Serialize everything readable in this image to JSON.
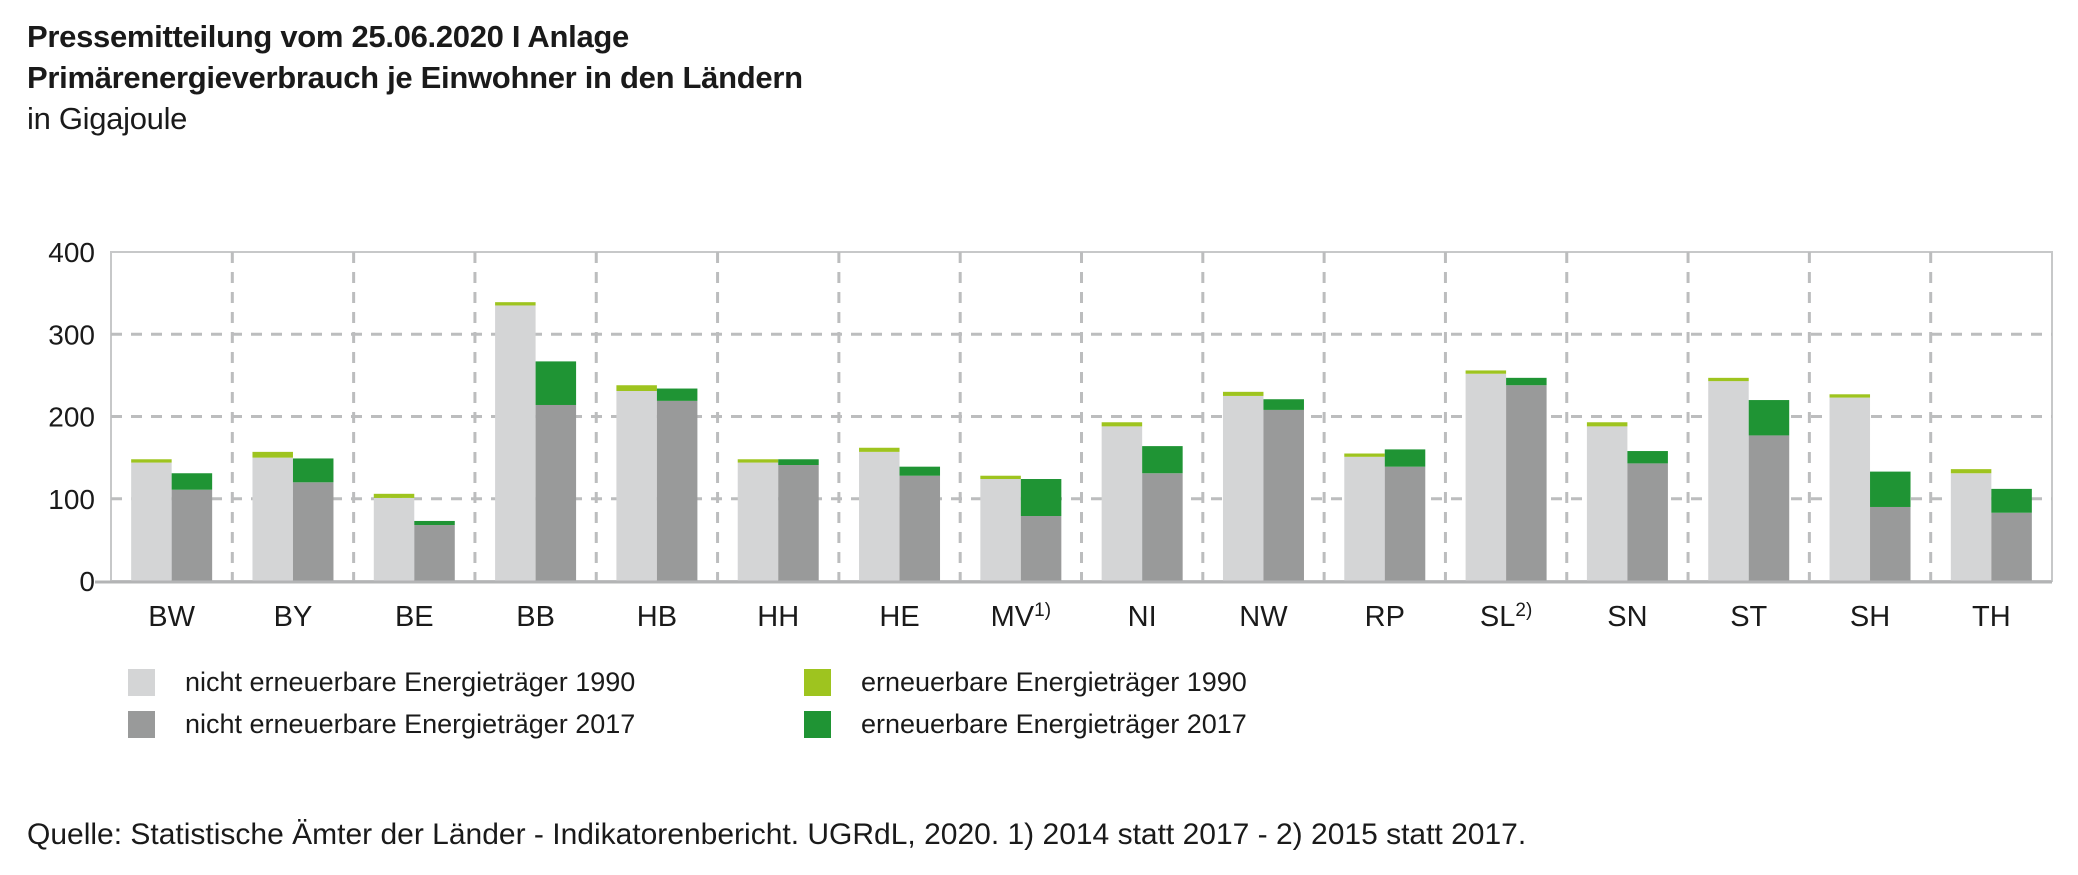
{
  "header": {
    "line1": "Pressemitteilung vom 25.06.2020 I Anlage",
    "line2": "Primärenergieverbrauch je Einwohner in den Ländern",
    "line3": "in Gigajoule"
  },
  "legend": {
    "items": [
      {
        "label": "nicht erneuerbare Energieträger 1990",
        "color": "#d4d5d6"
      },
      {
        "label": "nicht erneuerbare Energieträger 2017",
        "color": "#999a9a"
      },
      {
        "label": "erneuerbare Energieträger 1990",
        "color": "#9ec41f"
      },
      {
        "label": "erneuerbare Energieträger 2017",
        "color": "#1f9434"
      }
    ]
  },
  "footer": {
    "source": "Quelle: Statistische Ämter der Länder - Indikatorenbericht. UGRdL, 2020. 1) 2014 statt 2017 - 2) 2015 statt 2017."
  },
  "chart_data": {
    "type": "bar",
    "subtype": "grouped-stacked",
    "title": "Primärenergieverbrauch je Einwohner in den Ländern",
    "unit": "Gigajoule",
    "ylim": [
      0,
      400
    ],
    "yticks": [
      0,
      100,
      200,
      300,
      400
    ],
    "grid": "dashed-horizontal-and-vertical-separators",
    "legend_position": "bottom",
    "categories": [
      {
        "label": "BW",
        "sup": ""
      },
      {
        "label": "BY",
        "sup": ""
      },
      {
        "label": "BE",
        "sup": ""
      },
      {
        "label": "BB",
        "sup": ""
      },
      {
        "label": "HB",
        "sup": ""
      },
      {
        "label": "HH",
        "sup": ""
      },
      {
        "label": "HE",
        "sup": ""
      },
      {
        "label": "MV",
        "sup": "1)"
      },
      {
        "label": "NI",
        "sup": ""
      },
      {
        "label": "NW",
        "sup": ""
      },
      {
        "label": "RP",
        "sup": ""
      },
      {
        "label": "SL",
        "sup": "2)"
      },
      {
        "label": "SN",
        "sup": ""
      },
      {
        "label": "ST",
        "sup": ""
      },
      {
        "label": "SH",
        "sup": ""
      },
      {
        "label": "TH",
        "sup": ""
      }
    ],
    "series": [
      {
        "name": "nicht erneuerbare Energieträger 1990",
        "group": "1990",
        "stack_order": 0,
        "color": "#d4d5d6",
        "values": [
          144,
          150,
          101,
          335,
          231,
          144,
          157,
          124,
          188,
          225,
          151,
          252,
          188,
          243,
          223,
          131
        ]
      },
      {
        "name": "erneuerbare Energieträger 1990",
        "group": "1990",
        "stack_order": 1,
        "color": "#9ec41f",
        "values": [
          4,
          7,
          5,
          4,
          7,
          4,
          5,
          4,
          5,
          5,
          4,
          4,
          5,
          4,
          4,
          5
        ]
      },
      {
        "name": "nicht erneuerbare Energieträger 2017",
        "group": "2017",
        "stack_order": 0,
        "color": "#999a9a",
        "values": [
          111,
          120,
          68,
          214,
          219,
          141,
          128,
          79,
          131,
          208,
          139,
          238,
          143,
          177,
          90,
          83
        ]
      },
      {
        "name": "erneuerbare Energieträger 2017",
        "group": "2017",
        "stack_order": 1,
        "color": "#1f9434",
        "values": [
          20,
          29,
          5,
          53,
          15,
          7,
          11,
          45,
          33,
          13,
          21,
          9,
          15,
          43,
          43,
          29
        ]
      }
    ],
    "style": {
      "plot_border_color": "#c7c8c9",
      "grid_color": "#bcbdbe",
      "baseline_color": "#b3b4b5",
      "text_color": "#1a1a1a"
    }
  }
}
